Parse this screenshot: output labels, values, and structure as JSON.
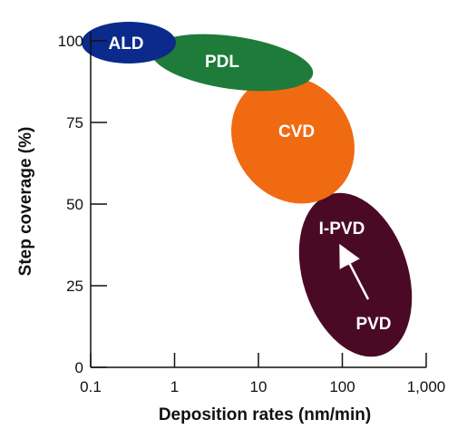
{
  "chart_data": {
    "type": "scatter",
    "title": "",
    "xlabel": "Deposition rates (nm/min)",
    "ylabel": "Step coverage (%)",
    "x_scale": "log",
    "xlim": [
      0.1,
      1000
    ],
    "ylim": [
      0,
      100
    ],
    "x_ticks": [
      {
        "value": 0.1,
        "label": "0.1"
      },
      {
        "value": 1,
        "label": "1"
      },
      {
        "value": 10,
        "label": "10"
      },
      {
        "value": 100,
        "label": "100"
      },
      {
        "value": 1000,
        "label": "1,000"
      }
    ],
    "y_ticks": [
      {
        "value": 0,
        "label": "0"
      },
      {
        "value": 25,
        "label": "25"
      },
      {
        "value": 50,
        "label": "50"
      },
      {
        "value": 75,
        "label": "75"
      },
      {
        "value": 100,
        "label": "100"
      }
    ],
    "grid": false,
    "regions": [
      {
        "label": "PVD",
        "color": "#4a0a26",
        "x_range": [
          35,
          700
        ],
        "y_range": [
          8,
          52
        ],
        "center": [
          170,
          30
        ]
      },
      {
        "label": "CVD",
        "color": "#f06a12",
        "x_range": [
          4,
          150
        ],
        "y_range": [
          50,
          88
        ],
        "center": [
          25,
          69
        ]
      },
      {
        "label": "PDL",
        "color": "#1e7b3a",
        "x_range": [
          0.7,
          60
        ],
        "y_range": [
          85,
          97
        ],
        "center": [
          6,
          90
        ]
      },
      {
        "label": "ALD",
        "color": "#0b2a8c",
        "x_range": [
          0.1,
          1
        ],
        "y_range": [
          94,
          100
        ],
        "center": [
          0.3,
          97
        ]
      }
    ],
    "annotations": [
      {
        "text": "I-PVD",
        "x": 100,
        "y": 42
      },
      {
        "type": "arrow",
        "from": [
          130,
          19
        ],
        "to": [
          85,
          35
        ],
        "color": "#ffffff"
      }
    ]
  }
}
